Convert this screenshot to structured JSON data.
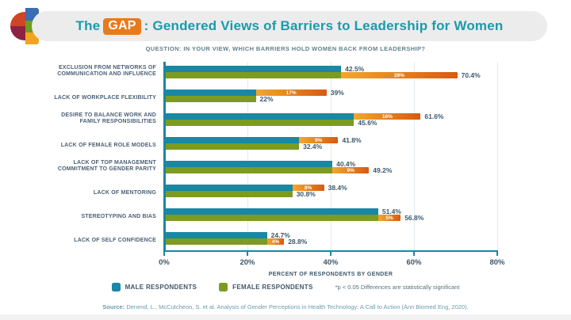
{
  "header": {
    "title_prefix": "The",
    "gap_badge": "GAP",
    "title_rest": ": Gendered Views of Barriers to Leadership for Women"
  },
  "question": "QUESTION: IN YOUR VIEW, WHICH BARRIERS HOLD WOMEN BACK FROM LEADERSHIP?",
  "chart_data": {
    "type": "bar",
    "orientation": "horizontal",
    "title": "The GAP: Gendered Views of Barriers to Leadership for Women",
    "xlabel": "PERCENT OF RESPONDENTS BY GENDER",
    "xlim": [
      0,
      80
    ],
    "tick_values": [
      0,
      20,
      40,
      60,
      80
    ],
    "x_ticks": [
      "0%",
      "20%",
      "40%",
      "60%",
      "80%"
    ],
    "grid_values": [
      20,
      40,
      60,
      80
    ],
    "series": [
      {
        "name": "MALE RESPONDENTS",
        "color": "#1987a5"
      },
      {
        "name": "FEMALE RESPONDENTS",
        "color": "#7d9b20"
      }
    ],
    "rows": [
      {
        "label": "EXCLUSION FROM NETWORKS OF COMMUNICATION AND INFLUENCE",
        "male": 42.5,
        "female": 70.4,
        "male_label": "42.5%",
        "female_label": "70.4%",
        "gap_label": "28%",
        "gap_on": "female"
      },
      {
        "label": "LACK OF WORKPLACE FLEXIBILITY",
        "male": 39,
        "female": 22,
        "male_label": "39%",
        "female_label": "22%",
        "gap_label": "17%",
        "gap_on": "male"
      },
      {
        "label": "DESIRE TO BALANCE WORK AND FAMILY RESPONSIBILITIES",
        "male": 61.6,
        "female": 45.6,
        "male_label": "61.6%",
        "female_label": "45.6%",
        "gap_label": "16%",
        "gap_on": "male"
      },
      {
        "label": "LACK OF FEMALE ROLE MODELS",
        "male": 41.8,
        "female": 32.4,
        "male_label": "41.8%",
        "female_label": "32.4%",
        "gap_label": "9%",
        "gap_on": "male"
      },
      {
        "label": "LACK OF TOP MANAGEMENT COMMITMENT TO GENDER PARITY",
        "male": 40.4,
        "female": 49.2,
        "male_label": "40.4%",
        "female_label": "49.2%",
        "gap_label": "9%",
        "gap_on": "female"
      },
      {
        "label": "LACK OF MENTORING",
        "male": 38.4,
        "female": 30.8,
        "male_label": "38.4%",
        "female_label": "30.8%",
        "gap_label": "8%",
        "gap_on": "male"
      },
      {
        "label": "STEREOTYPING AND BIAS",
        "male": 51.4,
        "female": 56.8,
        "male_label": "51.4%",
        "female_label": "56.8%",
        "gap_label": "5%",
        "gap_on": "female"
      },
      {
        "label": "LACK OF SELF CONFIDENCE",
        "male": 24.7,
        "female": 28.8,
        "male_label": "24.7%",
        "female_label": "28.8%",
        "gap_label": "4%",
        "gap_on": "female"
      }
    ],
    "colors": {
      "male": "#1987a5",
      "female": "#7d9b20",
      "gap_start": "#f2a72e",
      "gap_end": "#d85a10",
      "axis": "#1987a5",
      "value_text": "#3d576b"
    }
  },
  "legend": {
    "male": "MALE RESPONDENTS",
    "female": "FEMALE RESPONDENTS",
    "note": "*p < 0.05 Differences are statistically significant"
  },
  "source": {
    "prefix": "Source:",
    "text": " Denend, L., McCutcheon, S. et al. Analysis of Gender Perceptions in Health Technology: A Call to Action (Ann Biomed Eng, 2020)."
  }
}
